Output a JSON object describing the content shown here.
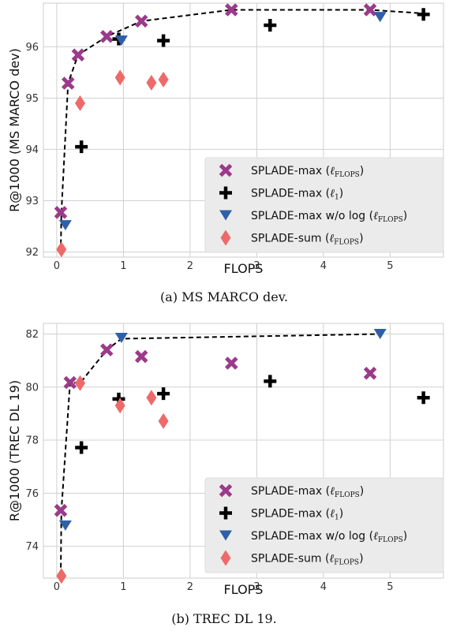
{
  "colors": {
    "max_flops": "#9b3a8a",
    "max_l1": "#000000",
    "max_nolog": "#2f5fa8",
    "sum": "#ee6a6a",
    "grid": "#d0d0d0",
    "legend_bg": "#ebebeb"
  },
  "legend_labels": {
    "max_flops": {
      "main": "SPLADE-max (",
      "sub": "ℓ",
      "subsub": "FLOPS",
      "end": ")"
    },
    "max_l1": {
      "main": "SPLADE-max (",
      "sub": "ℓ",
      "subsub": "1",
      "end": ")"
    },
    "max_nolog": {
      "main": "SPLADE-max w/o log (",
      "sub": "ℓ",
      "subsub": "FLOPS",
      "end": ")"
    },
    "sum": {
      "main": "SPLADE-sum (",
      "sub": "ℓ",
      "subsub": "FLOPS",
      "end": ")"
    }
  },
  "chart_data": [
    {
      "type": "scatter",
      "caption": "(a) MS MARCO dev.",
      "xlabel": "FLOPS",
      "ylabel": "R@1000 (MS MARCO dev)",
      "xlim": [
        -0.2,
        5.8
      ],
      "ylim": [
        91.9,
        96.85
      ],
      "xticks": [
        0,
        1,
        2,
        3,
        4,
        5
      ],
      "yticks": [
        92,
        93,
        94,
        95,
        96
      ],
      "grid": true,
      "legend_position": "lower-right",
      "series": [
        {
          "name": "SPLADE-max (ℓFLOPS)",
          "key": "max_flops",
          "marker": "x",
          "points": [
            [
              0.06,
              92.77
            ],
            [
              0.17,
              95.29
            ],
            [
              0.32,
              95.84
            ],
            [
              0.75,
              96.2
            ],
            [
              1.27,
              96.5
            ],
            [
              2.62,
              96.72
            ],
            [
              4.7,
              96.72
            ]
          ]
        },
        {
          "name": "SPLADE-max (ℓ1)",
          "key": "max_l1",
          "marker": "plus",
          "points": [
            [
              0.37,
              94.05
            ],
            [
              0.93,
              96.15
            ],
            [
              1.6,
              96.12
            ],
            [
              3.2,
              96.42
            ],
            [
              5.5,
              96.63
            ]
          ]
        },
        {
          "name": "SPLADE-max w/o log (ℓFLOPS)",
          "key": "max_nolog",
          "marker": "tri",
          "points": [
            [
              0.13,
              92.52
            ],
            [
              0.97,
              96.12
            ],
            [
              4.85,
              96.58
            ]
          ]
        },
        {
          "name": "SPLADE-sum (ℓFLOPS)",
          "key": "sum",
          "marker": "diamond",
          "points": [
            [
              0.07,
              92.05
            ],
            [
              0.35,
              94.9
            ],
            [
              0.95,
              95.4
            ],
            [
              1.42,
              95.3
            ],
            [
              1.6,
              95.36
            ]
          ]
        }
      ],
      "frontier": [
        [
          0.06,
          92.0
        ],
        [
          0.07,
          92.77
        ],
        [
          0.17,
          95.29
        ],
        [
          0.32,
          95.84
        ],
        [
          0.75,
          96.2
        ],
        [
          1.27,
          96.5
        ],
        [
          2.62,
          96.72
        ],
        [
          4.7,
          96.72
        ],
        [
          5.5,
          96.65
        ]
      ]
    },
    {
      "type": "scatter",
      "caption": "(b) TREC DL 19.",
      "xlabel": "FLOPS",
      "ylabel": "R@1000 (TREC DL 19)",
      "xlim": [
        -0.2,
        5.8
      ],
      "ylim": [
        72.8,
        82.4
      ],
      "xticks": [
        0,
        1,
        2,
        3,
        4,
        5
      ],
      "yticks": [
        74,
        76,
        78,
        80,
        82
      ],
      "grid": true,
      "legend_position": "lower-right",
      "series": [
        {
          "name": "SPLADE-max (ℓFLOPS)",
          "key": "max_flops",
          "marker": "x",
          "points": [
            [
              0.06,
              75.35
            ],
            [
              0.2,
              80.17
            ],
            [
              0.75,
              81.4
            ],
            [
              1.27,
              81.15
            ],
            [
              2.62,
              80.9
            ],
            [
              4.7,
              80.52
            ]
          ]
        },
        {
          "name": "SPLADE-max (ℓ1)",
          "key": "max_l1",
          "marker": "plus",
          "points": [
            [
              0.37,
              77.72
            ],
            [
              0.93,
              79.55
            ],
            [
              1.6,
              79.75
            ],
            [
              3.2,
              80.22
            ],
            [
              5.5,
              79.6
            ]
          ]
        },
        {
          "name": "SPLADE-max w/o log (ℓFLOPS)",
          "key": "max_nolog",
          "marker": "tri",
          "points": [
            [
              0.13,
              74.78
            ],
            [
              0.97,
              81.85
            ],
            [
              4.85,
              82.0
            ]
          ]
        },
        {
          "name": "SPLADE-sum (ℓFLOPS)",
          "key": "sum",
          "marker": "diamond",
          "points": [
            [
              0.07,
              72.88
            ],
            [
              0.35,
              80.15
            ],
            [
              0.95,
              79.3
            ],
            [
              1.42,
              79.6
            ],
            [
              1.6,
              78.72
            ]
          ]
        }
      ],
      "frontier": [
        [
          0.06,
          72.9
        ],
        [
          0.07,
          75.35
        ],
        [
          0.2,
          80.17
        ],
        [
          0.35,
          80.15
        ],
        [
          0.75,
          81.4
        ],
        [
          0.97,
          81.82
        ],
        [
          4.85,
          82.0
        ]
      ]
    }
  ]
}
